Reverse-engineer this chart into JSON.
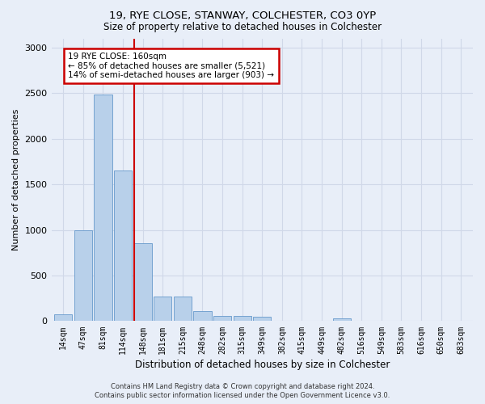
{
  "title1": "19, RYE CLOSE, STANWAY, COLCHESTER, CO3 0YP",
  "title2": "Size of property relative to detached houses in Colchester",
  "xlabel": "Distribution of detached houses by size in Colchester",
  "ylabel": "Number of detached properties",
  "categories": [
    "14sqm",
    "47sqm",
    "81sqm",
    "114sqm",
    "148sqm",
    "181sqm",
    "215sqm",
    "248sqm",
    "282sqm",
    "315sqm",
    "349sqm",
    "382sqm",
    "415sqm",
    "449sqm",
    "482sqm",
    "516sqm",
    "549sqm",
    "583sqm",
    "616sqm",
    "650sqm",
    "683sqm"
  ],
  "values": [
    75,
    1000,
    2480,
    1650,
    850,
    270,
    270,
    108,
    55,
    55,
    50,
    0,
    0,
    0,
    28,
    0,
    0,
    0,
    0,
    0,
    0
  ],
  "bar_color": "#b8d0ea",
  "bar_edge_color": "#6699cc",
  "grid_color": "#d0d8e8",
  "annotation_text": "19 RYE CLOSE: 160sqm\n← 85% of detached houses are smaller (5,521)\n14% of semi-detached houses are larger (903) →",
  "annotation_box_facecolor": "#ffffff",
  "annotation_box_edgecolor": "#cc0000",
  "vline_x": 3.55,
  "vline_color": "#cc0000",
  "ylim": [
    0,
    3100
  ],
  "yticks": [
    0,
    500,
    1000,
    1500,
    2000,
    2500,
    3000
  ],
  "footer1": "Contains HM Land Registry data © Crown copyright and database right 2024.",
  "footer2": "Contains public sector information licensed under the Open Government Licence v3.0.",
  "background_color": "#e8eef8"
}
